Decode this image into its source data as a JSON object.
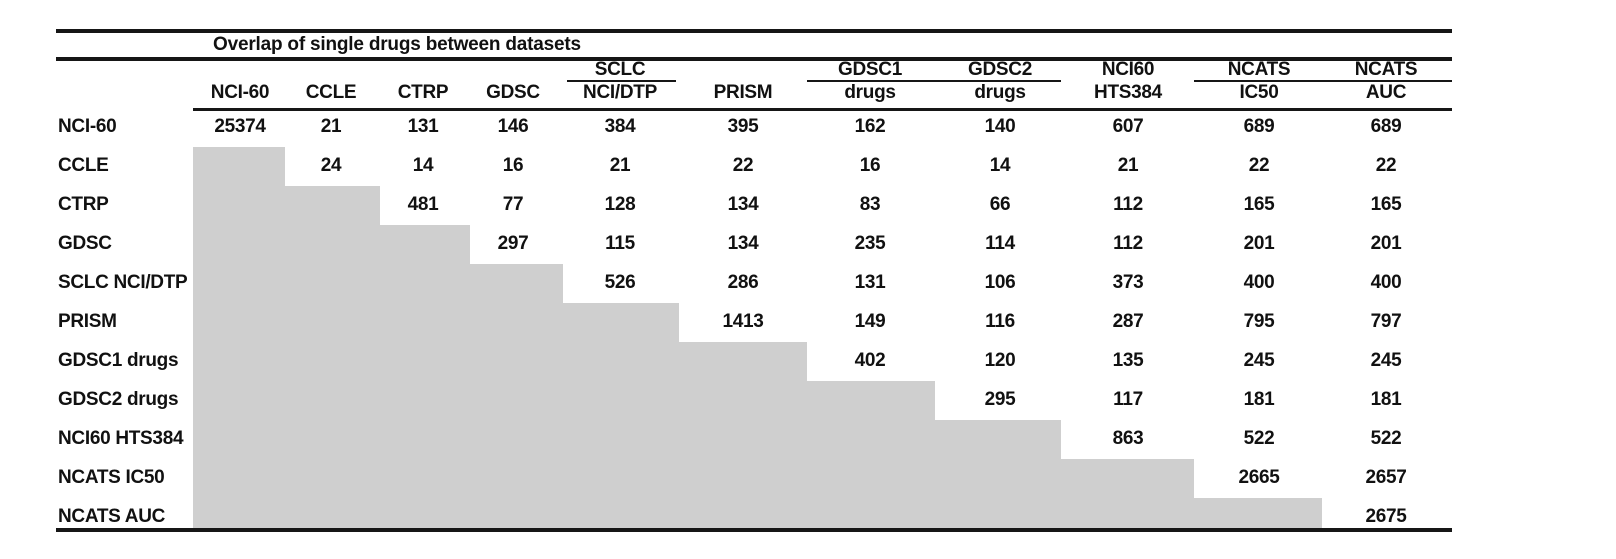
{
  "title": "Overlap of single drugs between datasets",
  "table": {
    "columns": [
      {
        "top": "",
        "bottom": "NCI-60"
      },
      {
        "top": "",
        "bottom": "CCLE"
      },
      {
        "top": "",
        "bottom": "CTRP"
      },
      {
        "top": "",
        "bottom": "GDSC"
      },
      {
        "top": "SCLC",
        "bottom": "NCI/DTP"
      },
      {
        "top": "",
        "bottom": "PRISM"
      },
      {
        "top": "GDSC1",
        "bottom": "drugs"
      },
      {
        "top": "GDSC2",
        "bottom": "drugs"
      },
      {
        "top": "NCI60",
        "bottom": "HTS384"
      },
      {
        "top": "NCATS",
        "bottom": "IC50"
      },
      {
        "top": "NCATS",
        "bottom": "AUC"
      }
    ],
    "rows": [
      {
        "label": "NCI-60",
        "values": [
          "25374",
          "21",
          "131",
          "146",
          "384",
          "395",
          "162",
          "140",
          "607",
          "689",
          "689"
        ]
      },
      {
        "label": "CCLE",
        "values": [
          null,
          "24",
          "14",
          "16",
          "21",
          "22",
          "16",
          "14",
          "21",
          "22",
          "22"
        ]
      },
      {
        "label": "CTRP",
        "values": [
          null,
          null,
          "481",
          "77",
          "128",
          "134",
          "83",
          "66",
          "112",
          "165",
          "165"
        ]
      },
      {
        "label": "GDSC",
        "values": [
          null,
          null,
          null,
          "297",
          "115",
          "134",
          "235",
          "114",
          "112",
          "201",
          "201"
        ]
      },
      {
        "label": "SCLC NCI/DTP",
        "values": [
          null,
          null,
          null,
          null,
          "526",
          "286",
          "131",
          "106",
          "373",
          "400",
          "400"
        ]
      },
      {
        "label": "PRISM",
        "values": [
          null,
          null,
          null,
          null,
          null,
          "1413",
          "149",
          "116",
          "287",
          "795",
          "797"
        ]
      },
      {
        "label": "GDSC1 drugs",
        "values": [
          null,
          null,
          null,
          null,
          null,
          null,
          "402",
          "120",
          "135",
          "245",
          "245"
        ]
      },
      {
        "label": "GDSC2 drugs",
        "values": [
          null,
          null,
          null,
          null,
          null,
          null,
          null,
          "295",
          "117",
          "181",
          "181"
        ]
      },
      {
        "label": "NCI60 HTS384",
        "values": [
          null,
          null,
          null,
          null,
          null,
          null,
          null,
          null,
          "863",
          "522",
          "522"
        ]
      },
      {
        "label": "NCATS IC50",
        "values": [
          null,
          null,
          null,
          null,
          null,
          null,
          null,
          null,
          null,
          "2665",
          "2657"
        ]
      },
      {
        "label": "NCATS AUC",
        "values": [
          null,
          null,
          null,
          null,
          null,
          null,
          null,
          null,
          null,
          null,
          "2675"
        ]
      }
    ],
    "colors": {
      "shade_gray": "#cfcfcf",
      "rule_black": "#161616"
    }
  }
}
